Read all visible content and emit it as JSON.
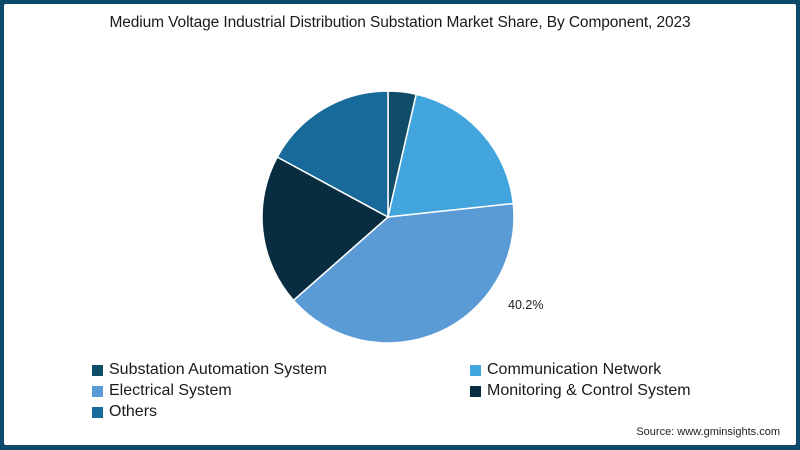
{
  "chart_data": {
    "type": "pie",
    "title": "Medium Voltage Industrial Distribution Substation Market Share, By Component, 2023",
    "categories": [
      "Substation Automation System",
      "Communication Network",
      "Electrical System",
      "Monitoring & Control System",
      "Others"
    ],
    "values": [
      3.6,
      19.7,
      40.2,
      19.4,
      17.1
    ],
    "colors": [
      "#0f4c68",
      "#42a5de",
      "#5b9bd5",
      "#082d40",
      "#176a9a"
    ],
    "data_labels": [
      {
        "category": "Electrical System",
        "label": "40.2%"
      }
    ],
    "legend_position": "bottom",
    "start_angle_deg": 0,
    "direction": "clockwise"
  },
  "title": "Medium Voltage Industrial Distribution Substation Market Share, By Component, 2023",
  "pct_label": "40.2%",
  "legend": [
    {
      "label": "Substation Automation System",
      "color": "#0f4c68"
    },
    {
      "label": "Communication Network",
      "color": "#42a5de"
    },
    {
      "label": "Electrical System",
      "color": "#5b9bd5"
    },
    {
      "label": "Monitoring & Control System",
      "color": "#082d40"
    },
    {
      "label": "Others",
      "color": "#176a9a"
    }
  ],
  "source": "Source: www.gminsights.com",
  "colors": {
    "border": "#0d4a6b",
    "background": "#ffffff"
  }
}
